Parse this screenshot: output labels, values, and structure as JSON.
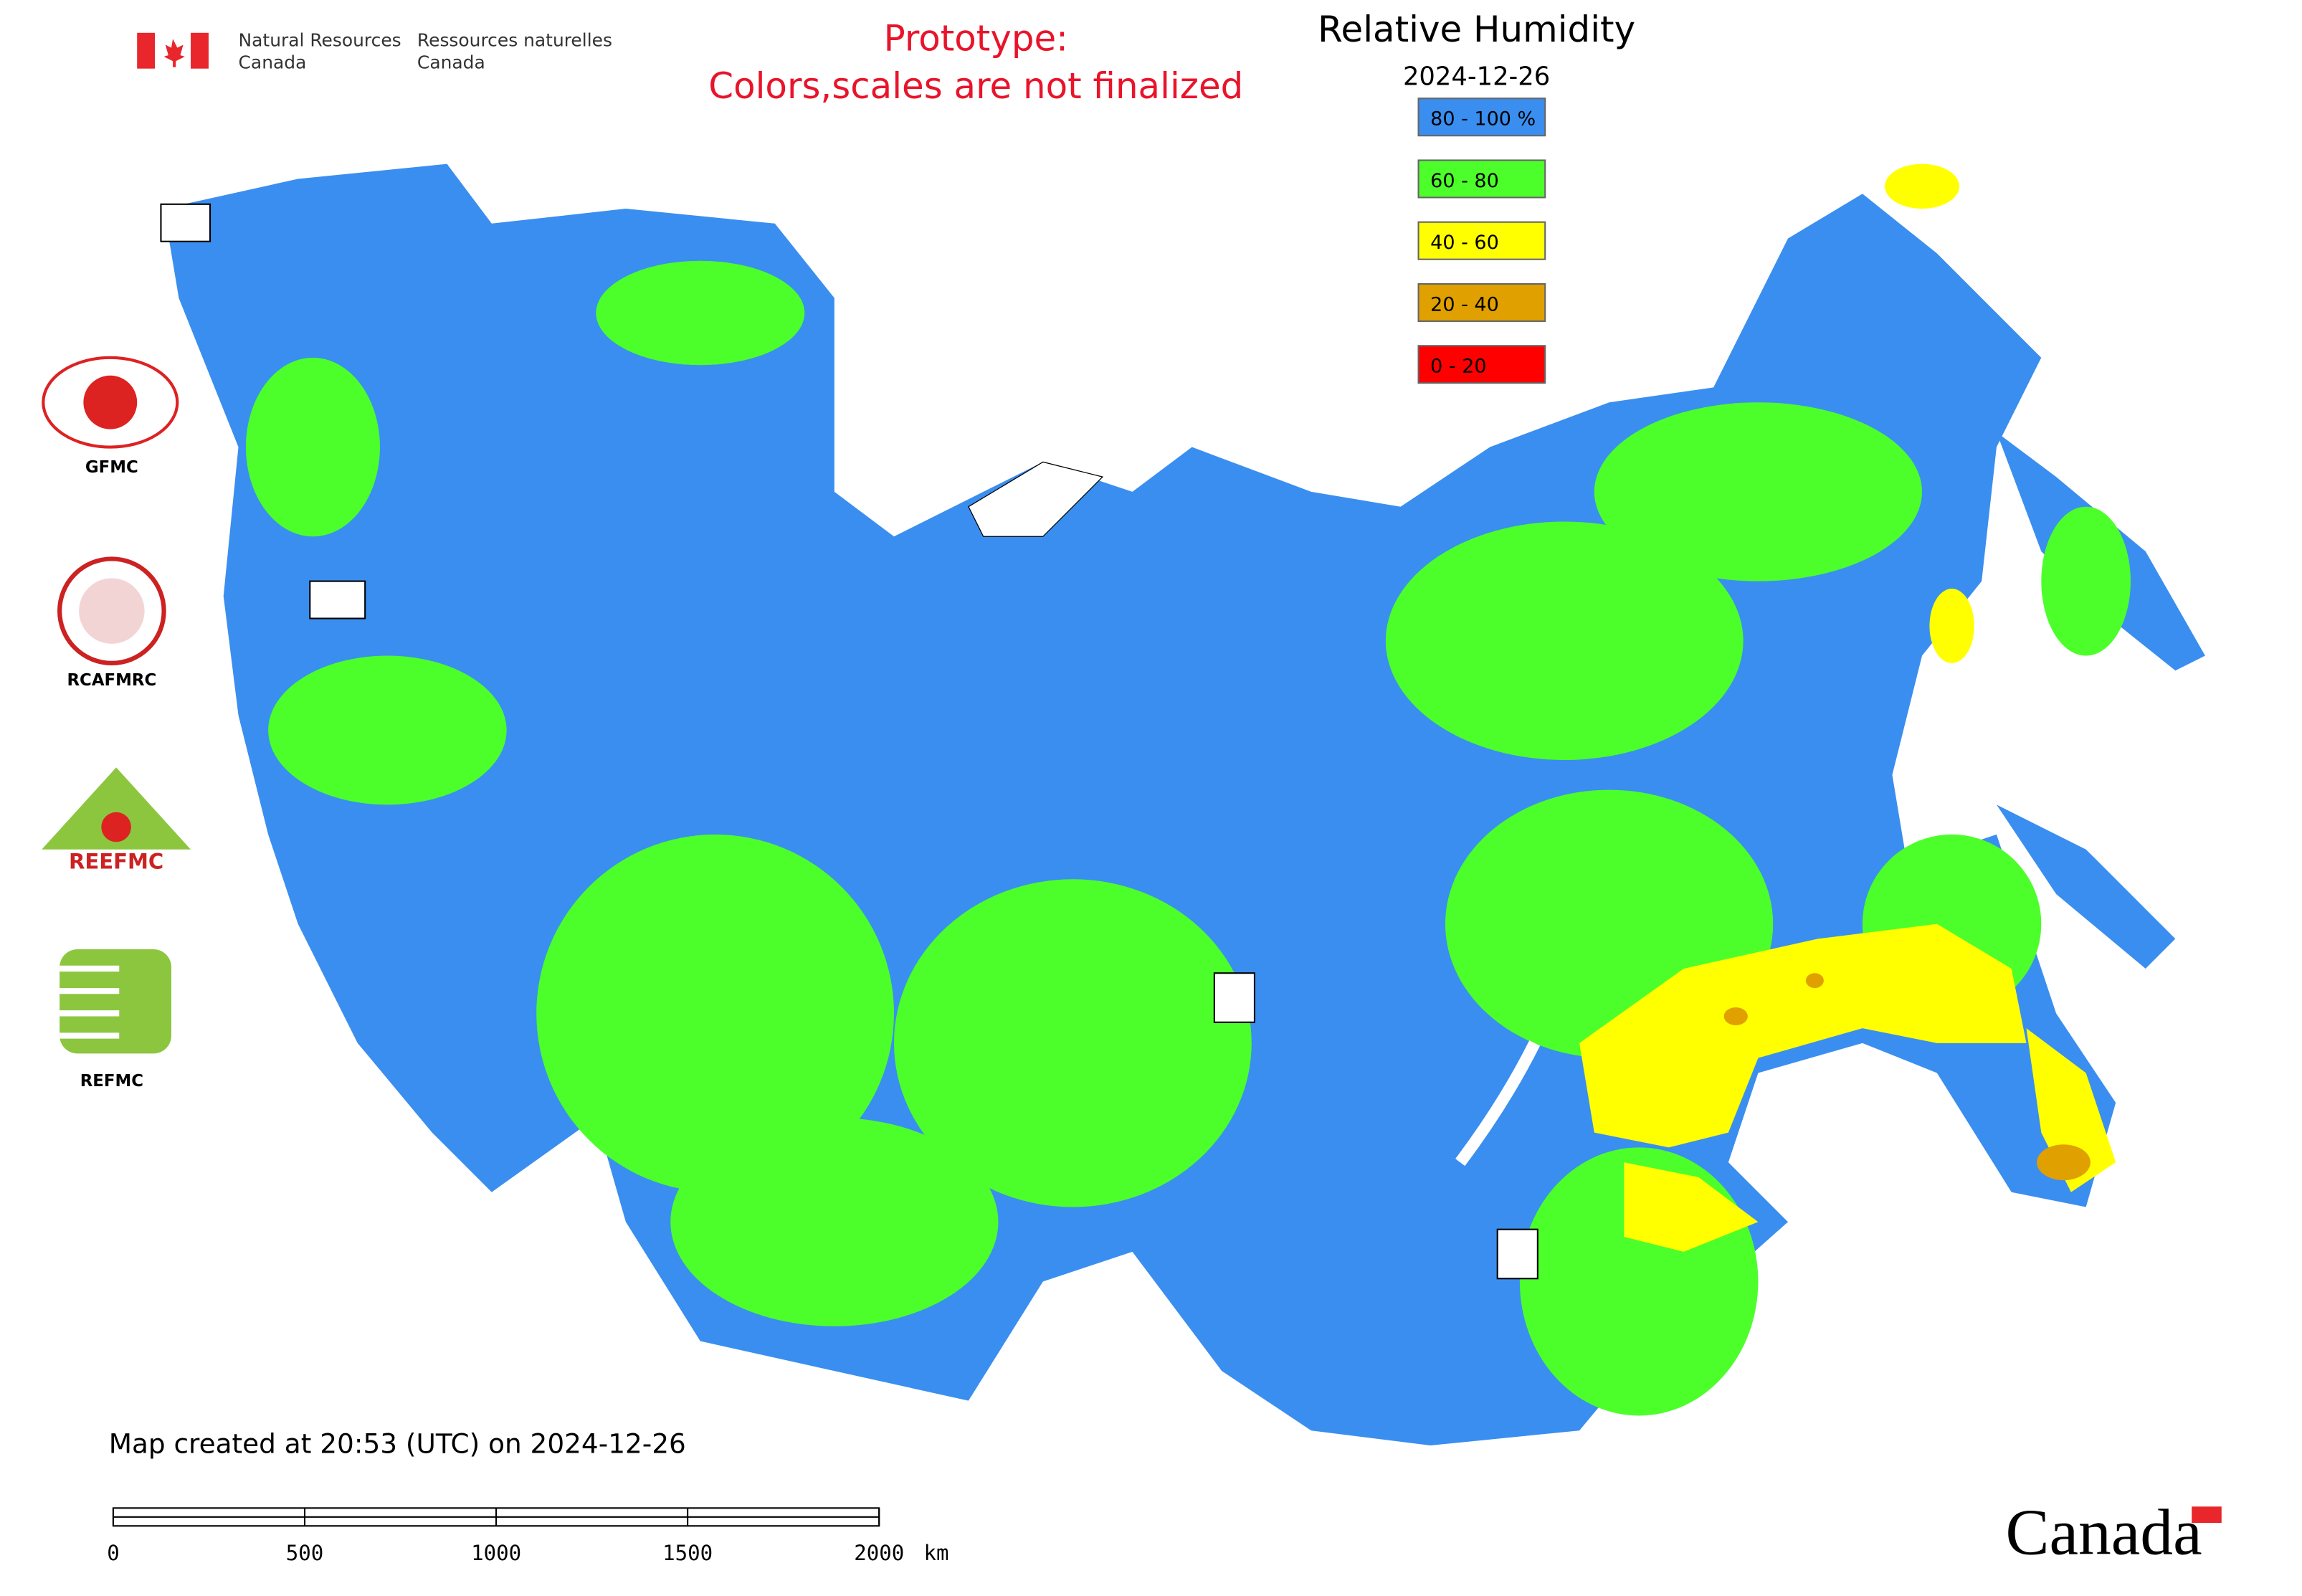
{
  "header": {
    "agency_en": [
      "Natural Resources",
      "Canada"
    ],
    "agency_fr": [
      "Ressources naturelles",
      "Canada"
    ],
    "notice": [
      "Prototype:",
      "Colors,scales are not finalized"
    ]
  },
  "legend": {
    "title": "Relative Humidity",
    "date": "2024-12-26",
    "classes": [
      {
        "label": "80 - 100 %",
        "color": "#3a8ef0"
      },
      {
        "label": "60 - 80",
        "color": "#4cff2a"
      },
      {
        "label": "40 - 60",
        "color": "#ffff00"
      },
      {
        "label": "20 - 40",
        "color": "#e0a000"
      },
      {
        "label": "0 - 20",
        "color": "#ff0000"
      }
    ]
  },
  "logos": [
    "GFMC",
    "RCAFMRC",
    "REEFMC",
    "REFMC"
  ],
  "footer": {
    "created": "Map created at 20:53 (UTC) on 2024-12-26",
    "scale_ticks": [
      0,
      500,
      1000,
      1500,
      2000
    ],
    "scale_unit": "km",
    "wordmark": "Canada"
  }
}
